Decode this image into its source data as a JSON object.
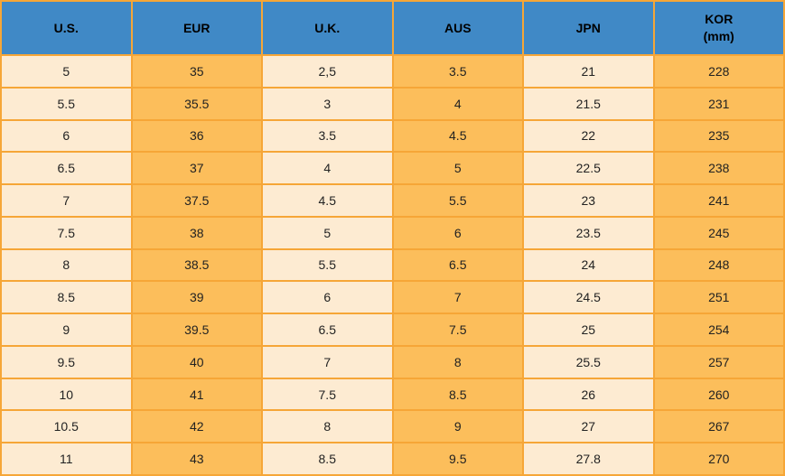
{
  "chart_data": {
    "type": "table",
    "title": "",
    "columns": [
      "U.S.",
      "EUR",
      "U.K.",
      "AUS",
      "JPN",
      "KOR\n(mm)"
    ],
    "rows": [
      [
        "5",
        "35",
        "2,5",
        "3.5",
        "21",
        "228"
      ],
      [
        "5.5",
        "35.5",
        "3",
        "4",
        "21.5",
        "231"
      ],
      [
        "6",
        "36",
        "3.5",
        "4.5",
        "22",
        "235"
      ],
      [
        "6.5",
        "37",
        "4",
        "5",
        "22.5",
        "238"
      ],
      [
        "7",
        "37.5",
        "4.5",
        "5.5",
        "23",
        "241"
      ],
      [
        "7.5",
        "38",
        "5",
        "6",
        "23.5",
        "245"
      ],
      [
        "8",
        "38.5",
        "5.5",
        "6.5",
        "24",
        "248"
      ],
      [
        "8.5",
        "39",
        "6",
        "7",
        "24.5",
        "251"
      ],
      [
        "9",
        "39.5",
        "6.5",
        "7.5",
        "25",
        "254"
      ],
      [
        "9.5",
        "40",
        "7",
        "8",
        "25.5",
        "257"
      ],
      [
        "10",
        "41",
        "7.5",
        "8.5",
        "26",
        "260"
      ],
      [
        "10.5",
        "42",
        "8",
        "9",
        "27",
        "267"
      ],
      [
        "11",
        "43",
        "8.5",
        "9.5",
        "27.8",
        "270"
      ]
    ],
    "layout": {
      "header_row": true,
      "column_striping": "odd columns light, even columns orange",
      "grid": true
    }
  },
  "colors": {
    "header_bg": "#4089C6",
    "header_text": "#000000",
    "cell_light": "#FDEBD2",
    "cell_orange": "#FCBE5B",
    "cell_text": "#222222",
    "border": "#F6A637"
  }
}
